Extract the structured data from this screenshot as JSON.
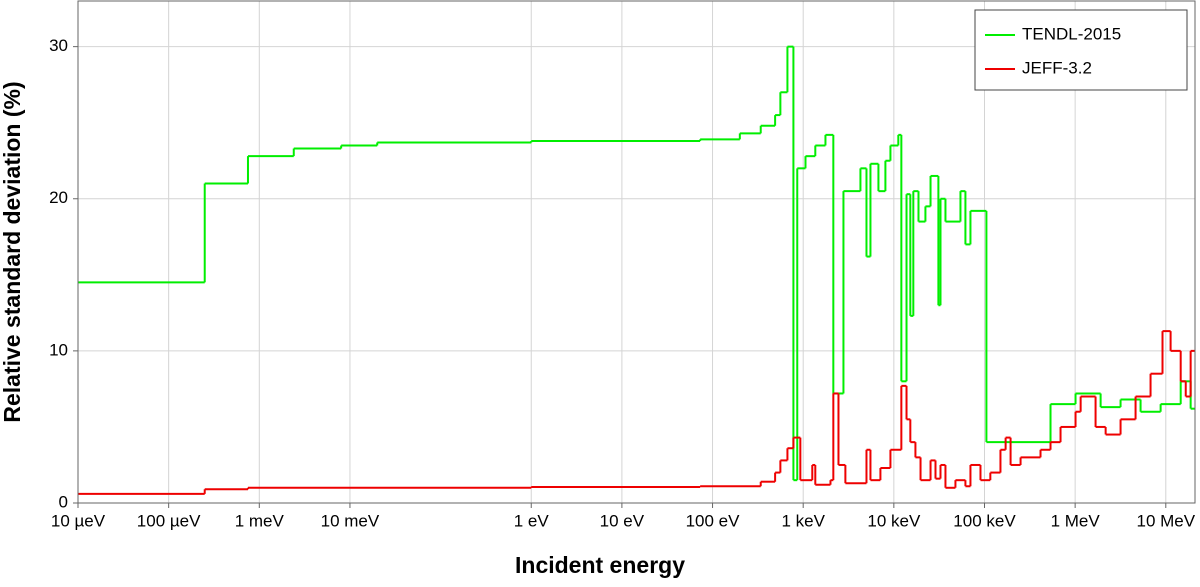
{
  "chart_data": {
    "type": "line",
    "drawstyle": "steps-post",
    "xlabel": "Incident energy",
    "ylabel": "Relative standard deviation (%)",
    "xscale": "log",
    "xlim": [
      1e-05,
      21000000.0
    ],
    "ylim": [
      0,
      33
    ],
    "grid": true,
    "legend": "upper right",
    "xticks": [
      {
        "value": 1e-05,
        "label": "10 µeV"
      },
      {
        "value": 0.0001,
        "label": "100 µeV"
      },
      {
        "value": 0.001,
        "label": "1 meV"
      },
      {
        "value": 0.01,
        "label": "10 meV"
      },
      {
        "value": 1,
        "label": "1 eV"
      },
      {
        "value": 10,
        "label": "10 eV"
      },
      {
        "value": 100,
        "label": "100 eV"
      },
      {
        "value": 1000,
        "label": "1 keV"
      },
      {
        "value": 10000,
        "label": "10 keV"
      },
      {
        "value": 100000,
        "label": "100 keV"
      },
      {
        "value": 1000000,
        "label": "1 MeV"
      },
      {
        "value": 10000000,
        "label": "10 MeV"
      }
    ],
    "yticks": [
      0,
      10,
      20,
      30
    ],
    "series": [
      {
        "name": "TENDL-2015",
        "color": "#00ee00",
        "x": [
          1e-05,
          0.00025,
          0.00075,
          0.0024,
          0.008,
          0.02,
          1,
          73,
          200,
          340,
          490,
          560,
          670,
          780,
          860,
          1060,
          1360,
          1760,
          2150,
          2780,
          4280,
          4990,
          5520,
          6760,
          8070,
          9170,
          11200,
          12100,
          13800,
          15200,
          16400,
          18700,
          22300,
          25400,
          31000,
          32700,
          37100,
          54300,
          61600,
          70000,
          105000,
          535000,
          1010000,
          1910000,
          3170000,
          5270000,
          8770000,
          14600000,
          18800000
        ],
        "values": [
          14.5,
          21.0,
          22.8,
          23.3,
          23.5,
          23.7,
          23.8,
          23.9,
          24.3,
          24.8,
          25.5,
          27,
          30,
          1.5,
          22,
          22.8,
          23.5,
          24.2,
          7.2,
          20.5,
          22,
          16.2,
          22.3,
          20.5,
          22.5,
          23.5,
          24.2,
          8,
          20.3,
          12.3,
          20.5,
          18.5,
          19.5,
          21.5,
          13,
          20,
          18.5,
          20.5,
          17,
          19.2,
          4.0,
          6.5,
          7.2,
          6.3,
          6.8,
          6.0,
          6.5,
          8.0,
          6.2
        ]
      },
      {
        "name": "JEFF-3.2",
        "color": "#ee0000",
        "x": [
          1e-05,
          0.00025,
          0.00075,
          1,
          73,
          340,
          490,
          560,
          670,
          780,
          930,
          1260,
          1360,
          2000,
          2150,
          2450,
          2920,
          4990,
          5520,
          7110,
          9170,
          12100,
          13800,
          15200,
          17300,
          19700,
          25400,
          28800,
          32700,
          37100,
          47800,
          61600,
          70000,
          90300,
          116000,
          150000,
          171000,
          194000,
          250000,
          415000,
          535000,
          690000,
          1010000,
          1150000,
          1680000,
          2170000,
          3170000,
          4640000,
          6790000,
          9200000,
          11300000,
          14600000,
          16600000,
          18800000
        ],
        "values": [
          0.6,
          0.9,
          1.0,
          1.05,
          1.1,
          1.4,
          2.0,
          2.8,
          3.6,
          4.3,
          1.5,
          2.5,
          1.2,
          1.5,
          7.2,
          2.5,
          1.3,
          3.5,
          1.5,
          2.3,
          3.5,
          7.7,
          5.5,
          4.0,
          3.0,
          1.5,
          2.8,
          1.6,
          2.5,
          1.0,
          1.5,
          1.1,
          2.5,
          1.5,
          2.0,
          3.5,
          4.3,
          2.5,
          3.0,
          3.5,
          4.0,
          5.0,
          6.0,
          7.0,
          5.0,
          4.5,
          5.5,
          7.0,
          8.5,
          11.3,
          10.0,
          8.0,
          7.0,
          10.0
        ]
      }
    ]
  }
}
